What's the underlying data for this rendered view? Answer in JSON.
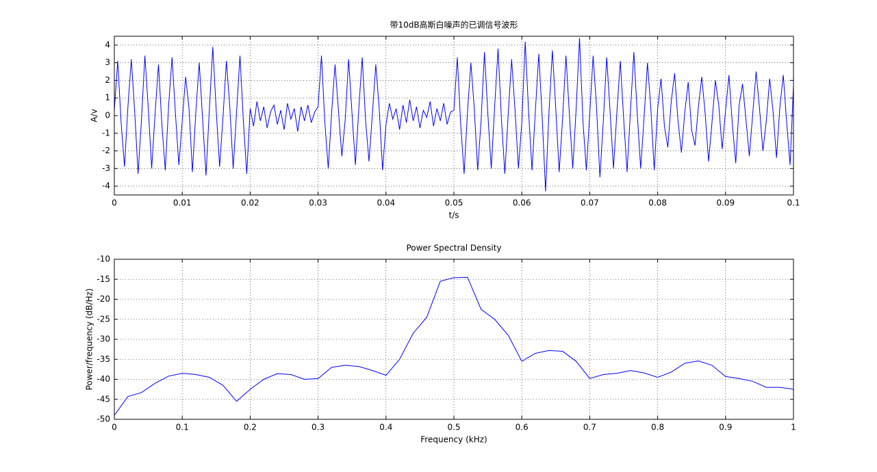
{
  "chart_data": [
    {
      "type": "line",
      "title": "带10dB高斯白噪声的已调信号波形",
      "xlabel": "t/s",
      "ylabel": "A/v",
      "xlim": [
        0,
        0.1
      ],
      "ylim": [
        -4.5,
        4.5
      ],
      "xticks": [
        0,
        0.01,
        0.02,
        0.03,
        0.04,
        0.05,
        0.06,
        0.07,
        0.08,
        0.09,
        0.1
      ],
      "yticks": [
        -4,
        -3,
        -2,
        -1,
        0,
        1,
        2,
        3,
        4
      ],
      "grid": true,
      "series": [
        {
          "color": "#0000ff",
          "x": [
            0,
            0.0005,
            0.001,
            0.0015,
            0.002,
            0.0025,
            0.003,
            0.0035,
            0.004,
            0.0045,
            0.005,
            0.0055,
            0.006,
            0.0065,
            0.007,
            0.0075,
            0.008,
            0.0085,
            0.009,
            0.0095,
            0.01,
            0.0105,
            0.011,
            0.0115,
            0.012,
            0.0125,
            0.013,
            0.0135,
            0.014,
            0.0145,
            0.015,
            0.0155,
            0.016,
            0.0165,
            0.017,
            0.0175,
            0.018,
            0.0185,
            0.019,
            0.0195,
            0.02,
            0.0205,
            0.021,
            0.0215,
            0.022,
            0.0225,
            0.023,
            0.0235,
            0.024,
            0.0245,
            0.025,
            0.0255,
            0.026,
            0.0265,
            0.027,
            0.0275,
            0.028,
            0.0285,
            0.029,
            0.0295,
            0.03,
            0.0305,
            0.031,
            0.0315,
            0.032,
            0.0325,
            0.033,
            0.0335,
            0.034,
            0.0345,
            0.035,
            0.0355,
            0.036,
            0.0365,
            0.037,
            0.0375,
            0.038,
            0.0385,
            0.039,
            0.0395,
            0.04,
            0.0405,
            0.041,
            0.0415,
            0.042,
            0.0425,
            0.043,
            0.0435,
            0.044,
            0.0445,
            0.045,
            0.0455,
            0.046,
            0.0465,
            0.047,
            0.0475,
            0.048,
            0.0485,
            0.049,
            0.0495,
            0.05,
            0.0505,
            0.051,
            0.0515,
            0.052,
            0.0525,
            0.053,
            0.0535,
            0.054,
            0.0545,
            0.055,
            0.0555,
            0.056,
            0.0565,
            0.057,
            0.0575,
            0.058,
            0.0585,
            0.059,
            0.0595,
            0.06,
            0.0605,
            0.061,
            0.0615,
            0.062,
            0.0625,
            0.063,
            0.0635,
            0.064,
            0.0645,
            0.065,
            0.0655,
            0.066,
            0.0665,
            0.067,
            0.0675,
            0.068,
            0.0685,
            0.069,
            0.0695,
            0.07,
            0.0705,
            0.071,
            0.0715,
            0.072,
            0.0725,
            0.073,
            0.0735,
            0.074,
            0.0745,
            0.075,
            0.0755,
            0.076,
            0.0765,
            0.077,
            0.0775,
            0.078,
            0.0785,
            0.079,
            0.0795,
            0.08,
            0.0805,
            0.081,
            0.0815,
            0.082,
            0.0825,
            0.083,
            0.0835,
            0.084,
            0.0845,
            0.085,
            0.0855,
            0.086,
            0.0865,
            0.087,
            0.0875,
            0.088,
            0.0885,
            0.089,
            0.0895,
            0.09,
            0.0905,
            0.091,
            0.0915,
            0.092,
            0.0925,
            0.093,
            0.0935,
            0.094,
            0.0945,
            0.095,
            0.0955,
            0.096,
            0.0965,
            0.097,
            0.0975,
            0.098,
            0.0985,
            0.099,
            0.0995,
            0.1
          ],
          "values": [
            0.3,
            3.1,
            -0.4,
            -2.9,
            0.5,
            3.2,
            0.2,
            -3.3,
            -0.2,
            3.4,
            0.4,
            -3.0,
            0.1,
            2.9,
            -0.5,
            -3.1,
            0.6,
            3.3,
            0.1,
            -2.8,
            -0.3,
            2.2,
            0.4,
            -3.2,
            0.2,
            3.0,
            -0.2,
            -3.4,
            0.4,
            3.9,
            0.3,
            -2.9,
            -0.1,
            3.1,
            0.5,
            -3.0,
            0.2,
            3.4,
            -0.3,
            -3.3,
            0.4,
            -0.6,
            0.8,
            -0.3,
            0.5,
            -0.7,
            0.2,
            0.6,
            -0.5,
            0.3,
            -0.8,
            0.7,
            -0.2,
            0.4,
            -0.9,
            0.5,
            -0.3,
            0.6,
            -0.4,
            0.2,
            0.5,
            3.4,
            -0.4,
            -3.0,
            0.2,
            2.9,
            0.3,
            -2.3,
            -0.2,
            3.2,
            0.1,
            -2.8,
            0.4,
            3.3,
            -0.3,
            -2.6,
            0.1,
            2.9,
            0.4,
            -3.1,
            -0.5,
            0.7,
            -0.2,
            0.4,
            -0.8,
            0.6,
            -0.4,
            0.9,
            -0.3,
            0.5,
            -0.7,
            0.3,
            -0.1,
            0.8,
            -0.6,
            0.4,
            -0.3,
            0.7,
            -0.5,
            0.2,
            0.3,
            3.3,
            -0.5,
            -3.3,
            0.2,
            3.0,
            0.4,
            -3.1,
            -0.3,
            3.6,
            0.1,
            -3.0,
            0.5,
            3.8,
            -0.2,
            -3.3,
            0.1,
            3.2,
            0.3,
            -3.0,
            -0.4,
            4.2,
            0.2,
            -3.1,
            0.3,
            3.5,
            -0.1,
            -4.3,
            0.2,
            3.7,
            0.4,
            -3.2,
            -0.2,
            3.4,
            0.1,
            -3.0,
            0.4,
            4.4,
            -0.3,
            -3.1,
            0.1,
            3.4,
            0.5,
            -3.5,
            -0.3,
            3.3,
            0.2,
            -3.0,
            0.2,
            3.1,
            -0.2,
            -3.2,
            0.3,
            3.6,
            0.1,
            -3.0,
            -0.1,
            3.0,
            0.4,
            -3.1,
            0.4,
            2.1,
            -0.6,
            -1.8,
            0.8,
            2.4,
            -0.3,
            -2.1,
            0.2,
            1.9,
            -0.8,
            -1.7,
            0.5,
            2.2,
            0.1,
            -2.6,
            -0.4,
            2.0,
            0.6,
            -1.9,
            0.3,
            2.3,
            -0.5,
            -2.7,
            0.6,
            1.8,
            -0.2,
            -2.3,
            0.1,
            2.5,
            0.4,
            -2.0,
            -0.3,
            2.1,
            0.2,
            -2.4,
            0.5,
            2.3,
            -0.4,
            -2.8,
            1.7
          ]
        }
      ]
    },
    {
      "type": "line",
      "title": "Power Spectral Density",
      "xlabel": "Frequency (kHz)",
      "ylabel": "Power/frequency (dB/Hz)",
      "xlim": [
        0,
        1
      ],
      "ylim": [
        -50,
        -10
      ],
      "xticks": [
        0,
        0.1,
        0.2,
        0.3,
        0.4,
        0.5,
        0.6,
        0.7,
        0.8,
        0.9,
        1
      ],
      "yticks": [
        -50,
        -45,
        -40,
        -35,
        -30,
        -25,
        -20,
        -15,
        -10
      ],
      "grid": true,
      "series": [
        {
          "color": "#0000ff",
          "x": [
            0,
            0.02,
            0.04,
            0.06,
            0.08,
            0.1,
            0.12,
            0.14,
            0.16,
            0.18,
            0.2,
            0.22,
            0.24,
            0.26,
            0.28,
            0.3,
            0.32,
            0.34,
            0.36,
            0.38,
            0.4,
            0.42,
            0.44,
            0.46,
            0.48,
            0.5,
            0.52,
            0.54,
            0.56,
            0.58,
            0.6,
            0.62,
            0.64,
            0.66,
            0.68,
            0.7,
            0.72,
            0.74,
            0.76,
            0.78,
            0.8,
            0.82,
            0.84,
            0.86,
            0.88,
            0.9,
            0.92,
            0.94,
            0.96,
            0.98,
            1
          ],
          "values": [
            -49,
            -44.3,
            -43.3,
            -41,
            -39.2,
            -38.5,
            -38.8,
            -39.5,
            -41.5,
            -45.5,
            -42.5,
            -40,
            -38.6,
            -38.8,
            -40,
            -39.8,
            -37,
            -36.5,
            -36.8,
            -37.8,
            -39,
            -35,
            -28.5,
            -24.5,
            -15.5,
            -14.6,
            -14.5,
            -22.5,
            -25,
            -29,
            -35.5,
            -33.5,
            -32.8,
            -33,
            -35.5,
            -39.8,
            -38.8,
            -38.5,
            -37.8,
            -38.4,
            -39.5,
            -38.2,
            -36,
            -35.4,
            -36.5,
            -39.3,
            -39.8,
            -40.5,
            -42,
            -42,
            -42.5
          ]
        }
      ]
    }
  ]
}
